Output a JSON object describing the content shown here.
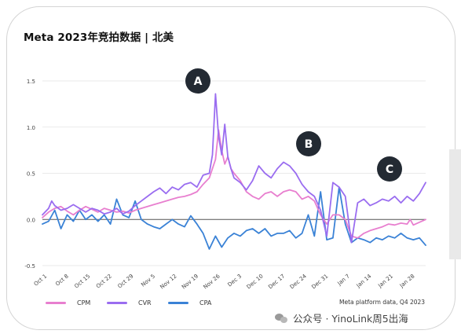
{
  "title": "Meta 2023年竞拍数据 | 北美",
  "source": "Meta platform data, Q4 2023",
  "watermark": "公众号 · YinoLink周5出海",
  "icons": {
    "watermark": "wechat-icon"
  },
  "chart_data": {
    "type": "line",
    "title": "Meta 2023年竞拍数据 | 北美",
    "ylim": [
      -0.5,
      1.5
    ],
    "yticks": [
      "1.5",
      "1.0",
      "0.5",
      "0.0",
      "-0.5"
    ],
    "ytick_values": [
      1.5,
      1.0,
      0.5,
      0.0,
      -0.5
    ],
    "xtick_labels": [
      "Oct 1",
      "Oct 8",
      "Oct 15",
      "Oct 22",
      "Oct 29",
      "Nov 5",
      "Nov 12",
      "Nov 19",
      "Nov 26",
      "Dec 3",
      "Dec 10",
      "Dec 17",
      "Dec 24",
      "Dec 31",
      "Jan 7",
      "Jan 14",
      "Jan 21",
      "Jan 28"
    ],
    "x_range_days": [
      0,
      124
    ],
    "grid": true,
    "legend_position": "bottom-left",
    "annotations": [
      {
        "label": "A",
        "x_day": 57
      },
      {
        "label": "B",
        "x_day": 93
      },
      {
        "label": "C",
        "x_day": 113
      }
    ],
    "series": [
      {
        "name": "CPM",
        "color": "#e87fcf",
        "points": [
          [
            0,
            0.02
          ],
          [
            2,
            0.08
          ],
          [
            4,
            0.12
          ],
          [
            6,
            0.14
          ],
          [
            8,
            0.09
          ],
          [
            10,
            0.05
          ],
          [
            12,
            0.1
          ],
          [
            14,
            0.14
          ],
          [
            16,
            0.11
          ],
          [
            18,
            0.08
          ],
          [
            20,
            0.12
          ],
          [
            22,
            0.1
          ],
          [
            24,
            0.08
          ],
          [
            26,
            0.09
          ],
          [
            28,
            0.07
          ],
          [
            30,
            0.1
          ],
          [
            32,
            0.12
          ],
          [
            34,
            0.14
          ],
          [
            36,
            0.16
          ],
          [
            38,
            0.18
          ],
          [
            40,
            0.2
          ],
          [
            42,
            0.22
          ],
          [
            44,
            0.24
          ],
          [
            46,
            0.25
          ],
          [
            48,
            0.27
          ],
          [
            50,
            0.3
          ],
          [
            52,
            0.38
          ],
          [
            54,
            0.45
          ],
          [
            55,
            0.55
          ],
          [
            56,
            0.65
          ],
          [
            57,
            0.97
          ],
          [
            58,
            0.75
          ],
          [
            59,
            0.6
          ],
          [
            60,
            0.68
          ],
          [
            61,
            0.55
          ],
          [
            62,
            0.5
          ],
          [
            64,
            0.42
          ],
          [
            66,
            0.3
          ],
          [
            68,
            0.25
          ],
          [
            70,
            0.22
          ],
          [
            72,
            0.28
          ],
          [
            74,
            0.3
          ],
          [
            76,
            0.25
          ],
          [
            78,
            0.3
          ],
          [
            80,
            0.32
          ],
          [
            82,
            0.3
          ],
          [
            84,
            0.22
          ],
          [
            86,
            0.25
          ],
          [
            88,
            0.2
          ],
          [
            90,
            0.05
          ],
          [
            92,
            -0.05
          ],
          [
            94,
            0.05
          ],
          [
            96,
            0.05
          ],
          [
            98,
            0.0
          ],
          [
            100,
            -0.18
          ],
          [
            102,
            -0.2
          ],
          [
            104,
            -0.15
          ],
          [
            106,
            -0.12
          ],
          [
            108,
            -0.1
          ],
          [
            110,
            -0.08
          ],
          [
            112,
            -0.05
          ],
          [
            114,
            -0.06
          ],
          [
            116,
            -0.04
          ],
          [
            118,
            -0.05
          ],
          [
            119,
            0.0
          ],
          [
            120,
            -0.06
          ],
          [
            122,
            -0.03
          ],
          [
            124,
            0.0
          ]
        ]
      },
      {
        "name": "CVR",
        "color": "#9a6df0",
        "points": [
          [
            0,
            0.05
          ],
          [
            2,
            0.12
          ],
          [
            3,
            0.2
          ],
          [
            4,
            0.15
          ],
          [
            6,
            0.1
          ],
          [
            8,
            0.12
          ],
          [
            10,
            0.16
          ],
          [
            12,
            0.12
          ],
          [
            14,
            0.08
          ],
          [
            16,
            0.12
          ],
          [
            18,
            0.1
          ],
          [
            20,
            0.06
          ],
          [
            22,
            0.08
          ],
          [
            24,
            0.12
          ],
          [
            26,
            0.06
          ],
          [
            28,
            0.09
          ],
          [
            30,
            0.15
          ],
          [
            32,
            0.2
          ],
          [
            34,
            0.25
          ],
          [
            36,
            0.3
          ],
          [
            38,
            0.34
          ],
          [
            40,
            0.28
          ],
          [
            42,
            0.35
          ],
          [
            44,
            0.32
          ],
          [
            46,
            0.38
          ],
          [
            48,
            0.4
          ],
          [
            50,
            0.35
          ],
          [
            52,
            0.48
          ],
          [
            54,
            0.5
          ],
          [
            55,
            0.7
          ],
          [
            56,
            1.36
          ],
          [
            57,
            0.9
          ],
          [
            58,
            0.7
          ],
          [
            59,
            1.03
          ],
          [
            60,
            0.68
          ],
          [
            61,
            0.55
          ],
          [
            62,
            0.45
          ],
          [
            64,
            0.4
          ],
          [
            66,
            0.32
          ],
          [
            68,
            0.42
          ],
          [
            70,
            0.58
          ],
          [
            72,
            0.5
          ],
          [
            74,
            0.45
          ],
          [
            76,
            0.55
          ],
          [
            78,
            0.62
          ],
          [
            80,
            0.58
          ],
          [
            82,
            0.5
          ],
          [
            84,
            0.38
          ],
          [
            86,
            0.3
          ],
          [
            88,
            0.25
          ],
          [
            90,
            0.1
          ],
          [
            92,
            -0.18
          ],
          [
            94,
            0.4
          ],
          [
            96,
            0.35
          ],
          [
            98,
            0.25
          ],
          [
            100,
            -0.25
          ],
          [
            102,
            0.18
          ],
          [
            104,
            0.22
          ],
          [
            106,
            0.15
          ],
          [
            108,
            0.18
          ],
          [
            110,
            0.22
          ],
          [
            112,
            0.2
          ],
          [
            114,
            0.25
          ],
          [
            116,
            0.18
          ],
          [
            118,
            0.25
          ],
          [
            120,
            0.2
          ],
          [
            122,
            0.28
          ],
          [
            124,
            0.4
          ]
        ]
      },
      {
        "name": "CPA",
        "color": "#3a82d6",
        "points": [
          [
            0,
            -0.05
          ],
          [
            2,
            -0.02
          ],
          [
            4,
            0.1
          ],
          [
            6,
            -0.1
          ],
          [
            8,
            0.05
          ],
          [
            10,
            -0.02
          ],
          [
            12,
            0.1
          ],
          [
            14,
            0.0
          ],
          [
            16,
            0.05
          ],
          [
            18,
            -0.02
          ],
          [
            20,
            0.05
          ],
          [
            22,
            -0.05
          ],
          [
            24,
            0.22
          ],
          [
            26,
            0.05
          ],
          [
            28,
            0.02
          ],
          [
            30,
            0.2
          ],
          [
            32,
            0.0
          ],
          [
            34,
            -0.05
          ],
          [
            36,
            -0.08
          ],
          [
            38,
            -0.1
          ],
          [
            40,
            -0.05
          ],
          [
            42,
            0.0
          ],
          [
            44,
            -0.05
          ],
          [
            46,
            -0.08
          ],
          [
            48,
            0.04
          ],
          [
            50,
            -0.05
          ],
          [
            52,
            -0.15
          ],
          [
            54,
            -0.32
          ],
          [
            56,
            -0.18
          ],
          [
            58,
            -0.3
          ],
          [
            60,
            -0.2
          ],
          [
            62,
            -0.15
          ],
          [
            64,
            -0.18
          ],
          [
            66,
            -0.12
          ],
          [
            68,
            -0.1
          ],
          [
            70,
            -0.15
          ],
          [
            72,
            -0.1
          ],
          [
            74,
            -0.18
          ],
          [
            76,
            -0.15
          ],
          [
            78,
            -0.15
          ],
          [
            80,
            -0.12
          ],
          [
            82,
            -0.2
          ],
          [
            84,
            -0.15
          ],
          [
            86,
            0.05
          ],
          [
            88,
            -0.18
          ],
          [
            90,
            0.3
          ],
          [
            92,
            -0.22
          ],
          [
            94,
            -0.2
          ],
          [
            96,
            0.35
          ],
          [
            98,
            -0.05
          ],
          [
            100,
            -0.25
          ],
          [
            102,
            -0.2
          ],
          [
            104,
            -0.22
          ],
          [
            106,
            -0.25
          ],
          [
            108,
            -0.2
          ],
          [
            110,
            -0.22
          ],
          [
            112,
            -0.18
          ],
          [
            114,
            -0.2
          ],
          [
            116,
            -0.15
          ],
          [
            118,
            -0.2
          ],
          [
            120,
            -0.22
          ],
          [
            122,
            -0.2
          ],
          [
            124,
            -0.28
          ]
        ]
      }
    ]
  }
}
